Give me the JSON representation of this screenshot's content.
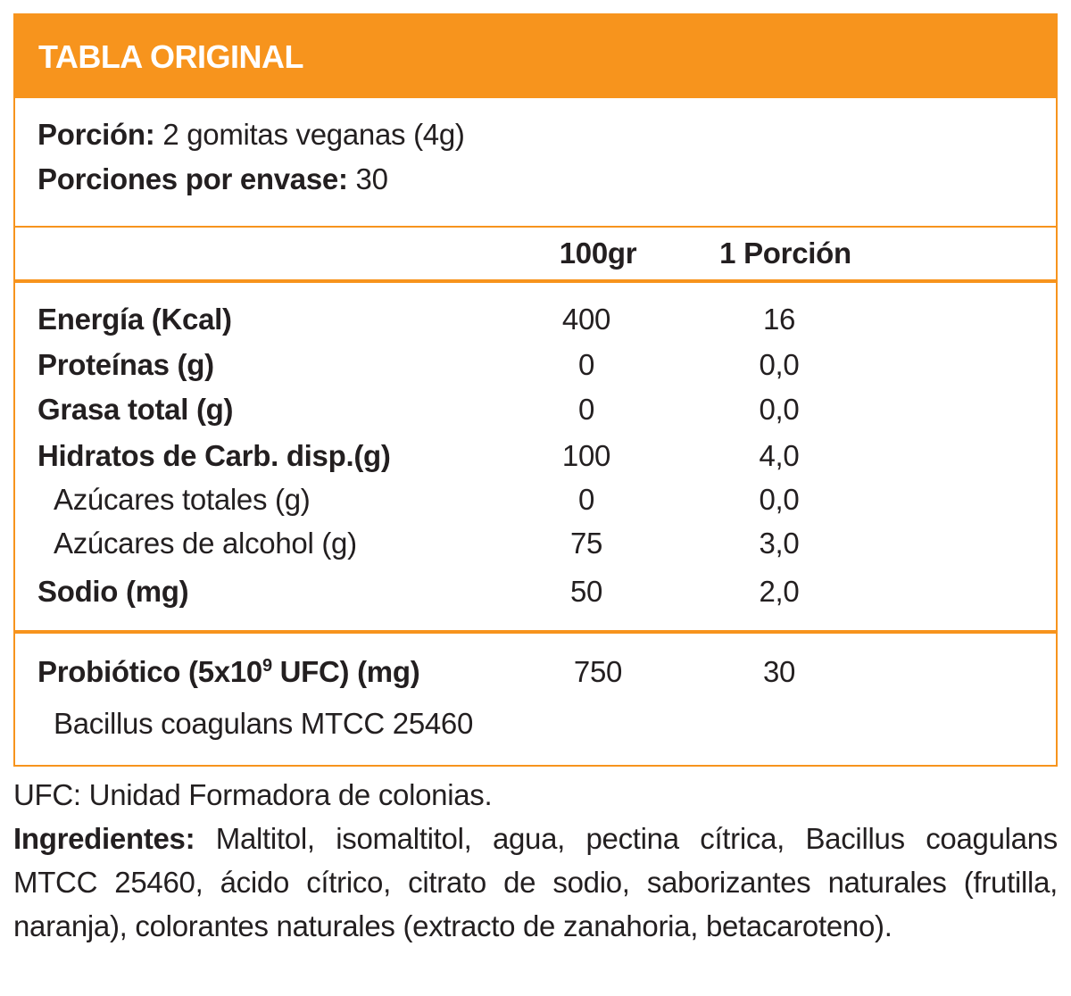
{
  "header": {
    "title": "TABLA ORIGINAL"
  },
  "serving": {
    "portion_label": "Porción:",
    "portion_value": "2 gomitas veganas (4g)",
    "per_pack_label": "Porciones por envase:",
    "per_pack_value": "30"
  },
  "columns": [
    "100gr",
    "1 Porción"
  ],
  "rows": [
    {
      "label": "Energía (Kcal)",
      "bold": true,
      "per100": "400",
      "portion": "16"
    },
    {
      "label": "Proteínas (g)",
      "bold": true,
      "per100": "0",
      "portion": "0,0"
    },
    {
      "label": "Grasa total (g)",
      "bold": true,
      "per100": "0",
      "portion": "0,0"
    },
    {
      "label": "Hidratos de Carb. disp.(g)",
      "bold": true,
      "per100": "100",
      "portion": "4,0"
    },
    {
      "label": "Azúcares totales (g)",
      "bold": false,
      "per100": "0",
      "portion": "0,0"
    },
    {
      "label": "Azúcares de alcohol (g)",
      "bold": false,
      "per100": "75",
      "portion": "3,0"
    },
    {
      "label": "Sodio (mg)",
      "bold": true,
      "per100": "50",
      "portion": "2,0"
    }
  ],
  "probiotic": {
    "label_start": "Probiótico (5x10",
    "label_sup": "9",
    "label_end": " UFC) (mg)",
    "per100": "750",
    "portion": "30",
    "strain": "Bacillus coagulans MTCC 25460"
  },
  "footnote": "UFC: Unidad Formadora de colonias.",
  "ingredients": {
    "label": "Ingredientes:",
    "text": "Maltitol, isomaltitol, agua, pectina cítrica, Bacillus coagulans MTCC 25460, ácido cítrico, citrato de sodio, saborizantes naturales (frutilla, naranja), colorantes naturales (extracto de zanahoria, betacaroteno)."
  }
}
